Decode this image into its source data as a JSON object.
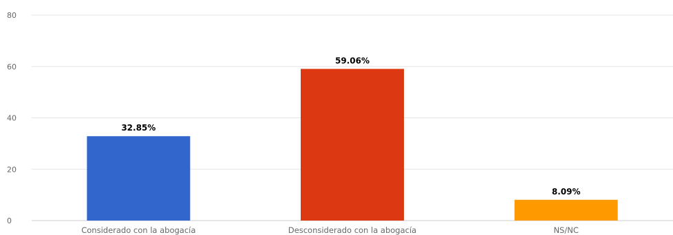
{
  "chart_data": {
    "type": "bar",
    "categories": [
      "Considerado con la abogacía",
      "Desconsiderado con la abogacía",
      "NS/NC"
    ],
    "values": [
      32.85,
      59.06,
      8.09
    ],
    "data_labels": [
      "32.85%",
      "59.06%",
      "8.09%"
    ],
    "colors": [
      "#3366cc",
      "#dc3912",
      "#ff9900"
    ],
    "ylim": [
      0,
      80
    ],
    "yticks": [
      0,
      20,
      40,
      60,
      80
    ],
    "grid": true,
    "legend": "none",
    "title": "",
    "xlabel": "",
    "ylabel": ""
  }
}
